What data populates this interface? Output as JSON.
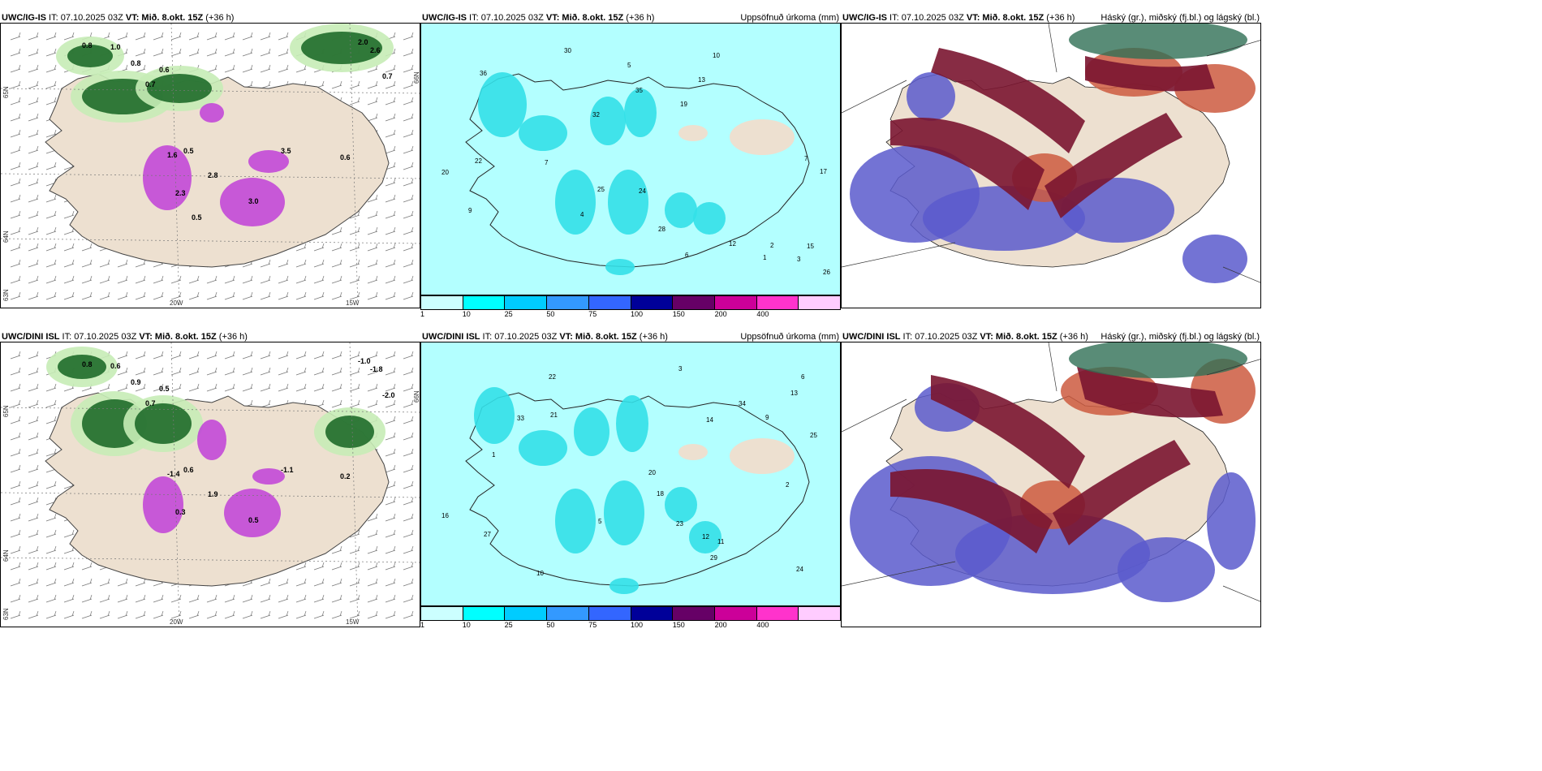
{
  "rows": [
    {
      "model": "UWC/IG-IS",
      "it": " IT: 07.10.2025 03Z ",
      "vt_label": "VT:",
      "vt": " Mið. 8.okt. 15Z",
      "lead": " (+36 h)"
    },
    {
      "model": "UWC/DINI ISL",
      "it": " IT: 07.10.2025 03Z ",
      "vt_label": "VT:",
      "vt": " Mið. 8.okt. 15Z",
      "lead": " (+36 h)"
    }
  ],
  "precip_title": "Uppsöfnuð úrkoma (mm)",
  "cloud_title": "Háský (gr.), miðský (fj.bl.) og lágský (bl.)",
  "lon_labels": [
    "20W",
    "15W"
  ],
  "lat_labels": [
    "65N",
    "64N",
    "66N",
    "63N"
  ],
  "colorbar": {
    "ticks": [
      "1",
      "10",
      "25",
      "50",
      "75",
      "100",
      "150",
      "200",
      "400"
    ],
    "colors": [
      "#ccffff",
      "#00ffff",
      "#00ccff",
      "#3399ff",
      "#3366ff",
      "#000099",
      "#660066",
      "#cc0099",
      "#ff33cc",
      "#ffccff"
    ]
  },
  "colors": {
    "land": "#ede0d0",
    "sea_precip": "#b3ffff",
    "moderate_precip": "#33e0e8",
    "green_light": "#c6ecb6",
    "green_dark": "#1f6b2a",
    "purple": "#c040d8",
    "high_cloud": "#7a1530",
    "mid_cloud": "#5a5acc",
    "low_cloud": "#cc5a40"
  },
  "temp_values_top": [
    "0.8",
    "1.0",
    "0.8",
    "0.6",
    "0.7",
    "2.0",
    "2.6",
    "0.7",
    "1.6",
    "2.3",
    "2.8",
    "3.5",
    "3.0",
    "0.5",
    "0.6",
    "0.5"
  ],
  "temp_values_bottom": [
    "0.8",
    "0.6",
    "0.9",
    "0.5",
    "0.7",
    "-1.0",
    "-1.8",
    "-2.0",
    "-1.4",
    "0.3",
    "1.9",
    "-1.1",
    "0.5",
    "0.6",
    "0.2"
  ],
  "precip_values_top": [
    "4",
    "5",
    "7",
    "15",
    "25",
    "26",
    "30",
    "28",
    "32",
    "17",
    "22",
    "35",
    "24",
    "13",
    "19",
    "20",
    "12",
    "9",
    "10",
    "3",
    "6",
    "2",
    "1",
    "36",
    "7"
  ],
  "precip_values_bottom": [
    "1",
    "6",
    "11",
    "14",
    "20",
    "22",
    "24",
    "21",
    "25",
    "18",
    "33",
    "27",
    "34",
    "23",
    "16",
    "13",
    "10",
    "9",
    "5",
    "12",
    "29",
    "3",
    "2"
  ]
}
